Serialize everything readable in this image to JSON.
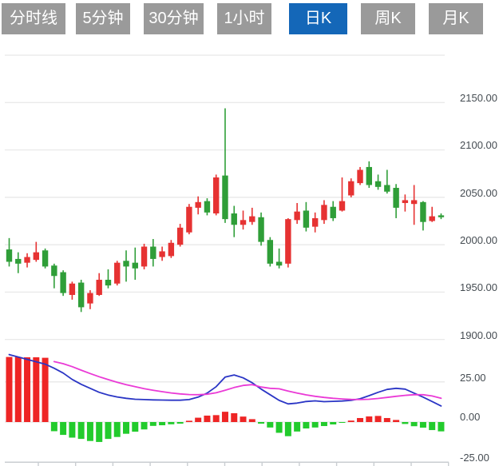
{
  "tabs": {
    "items": [
      {
        "label": "分时线",
        "active": false
      },
      {
        "label": "5分钟",
        "active": false
      },
      {
        "label": "30分钟",
        "active": false
      },
      {
        "label": "1小时",
        "active": false
      },
      {
        "label": "日K",
        "active": true
      },
      {
        "label": "周K",
        "active": false
      },
      {
        "label": "月K",
        "active": false
      }
    ]
  },
  "price_axis": {
    "labels": [
      "2150.00",
      "2100.00",
      "2050.00",
      "2000.00",
      "1950.00",
      "1900.00"
    ]
  },
  "macd_axis": {
    "labels": [
      "25.00",
      "0.00",
      "-25.00"
    ]
  },
  "chart_data": {
    "type": "candlestick",
    "title": "",
    "panels": [
      "price-candles",
      "macd"
    ],
    "price_axis_ticks": [
      2150,
      2100,
      2050,
      2000,
      1950,
      1900
    ],
    "price_grid_levels": [
      2200,
      2150,
      2100,
      2050,
      2000,
      1950,
      1900
    ],
    "price_range": [
      1900,
      2200
    ],
    "macd_axis_ticks": [
      25,
      0,
      -25
    ],
    "macd_range": [
      -25,
      45
    ],
    "grid": true,
    "candles_ohlc": [
      [
        1995,
        2007,
        1977,
        1982
      ],
      [
        1985,
        1992,
        1970,
        1980
      ],
      [
        1981,
        1991,
        1976,
        1987
      ],
      [
        1984,
        2003,
        1982,
        1992
      ],
      [
        1994,
        1996,
        1975,
        1977
      ],
      [
        1978,
        1980,
        1954,
        1967
      ],
      [
        1971,
        1973,
        1946,
        1949
      ],
      [
        1947,
        1961,
        1942,
        1959
      ],
      [
        1960,
        1963,
        1929,
        1934
      ],
      [
        1938,
        1952,
        1932,
        1949
      ],
      [
        1947,
        1970,
        1946,
        1963
      ],
      [
        1963,
        1974,
        1954,
        1957
      ],
      [
        1959,
        1983,
        1957,
        1981
      ],
      [
        1983,
        1994,
        1961,
        1977
      ],
      [
        1981,
        1997,
        1963,
        1975
      ],
      [
        1977,
        2001,
        1974,
        1998
      ],
      [
        1998,
        2006,
        1977,
        1985
      ],
      [
        1987,
        1998,
        1983,
        1993
      ],
      [
        1988,
        2005,
        1986,
        2002
      ],
      [
        2000,
        2022,
        1998,
        2018
      ],
      [
        2013,
        2043,
        2011,
        2040
      ],
      [
        2039,
        2051,
        2032,
        2045
      ],
      [
        2046,
        2049,
        2031,
        2034
      ],
      [
        2033,
        2074,
        2031,
        2071
      ],
      [
        2073,
        2144,
        2023,
        2027
      ],
      [
        2033,
        2041,
        2008,
        2021
      ],
      [
        2021,
        2036,
        2016,
        2026
      ],
      [
        2024,
        2039,
        2021,
        2030
      ],
      [
        2029,
        2034,
        1999,
        2003
      ],
      [
        2005,
        2008,
        1977,
        1980
      ],
      [
        1982,
        1996,
        1975,
        1978
      ],
      [
        1980,
        2028,
        1976,
        2027
      ],
      [
        2026,
        2044,
        2022,
        2035
      ],
      [
        2036,
        2045,
        2014,
        2018
      ],
      [
        2019,
        2034,
        2013,
        2028
      ],
      [
        2026,
        2047,
        2022,
        2042
      ],
      [
        2040,
        2046,
        2025,
        2028
      ],
      [
        2036,
        2071,
        2035,
        2046
      ],
      [
        2052,
        2070,
        2050,
        2067
      ],
      [
        2065,
        2082,
        2063,
        2079
      ],
      [
        2082,
        2088,
        2060,
        2063
      ],
      [
        2067,
        2074,
        2058,
        2061
      ],
      [
        2063,
        2079,
        2054,
        2056
      ],
      [
        2060,
        2064,
        2028,
        2039
      ],
      [
        2044,
        2053,
        2035,
        2047
      ],
      [
        2043,
        2063,
        2021,
        2047
      ],
      [
        2045,
        2046,
        2015,
        2024
      ],
      [
        2025,
        2040,
        2024,
        2030
      ],
      [
        2031,
        2033,
        2027,
        2029
      ]
    ],
    "macd": {
      "histogram": [
        40.5,
        40.5,
        40.3,
        40.3,
        40,
        -5.7,
        -8,
        -9.7,
        -10.5,
        -11.8,
        -12.4,
        -10.5,
        -9.3,
        -7.3,
        -6,
        -4.6,
        -2.4,
        -2,
        -1.4,
        -1,
        0.8,
        2.7,
        4,
        4.3,
        6.4,
        5.5,
        3.4,
        1.8,
        -1,
        -3.4,
        -6.7,
        -8.8,
        -5.9,
        -4,
        -3.4,
        -2.5,
        -1.5,
        -0.3,
        0.9,
        2.5,
        3.5,
        3.8,
        2.5,
        1.3,
        -1.2,
        -2.6,
        -3.5,
        -5,
        -5.8
      ],
      "dif": [
        42,
        40.5,
        39,
        37.5,
        36,
        33.5,
        30.5,
        26.5,
        23.5,
        21,
        18.5,
        16.8,
        15.6,
        14.8,
        14.2,
        14,
        13.8,
        13.7,
        13.6,
        13.6,
        14,
        15.5,
        18,
        22,
        28,
        29.3,
        27.5,
        24.5,
        20.5,
        17,
        13.5,
        11.3,
        11.8,
        12.8,
        13.2,
        12.7,
        12.9,
        13.1,
        13.5,
        14.5,
        16.4,
        18.5,
        20.3,
        21,
        20.5,
        18,
        15.5,
        12.8,
        10
      ],
      "dea": [
        null,
        null,
        null,
        null,
        null,
        37.6,
        36.3,
        34.5,
        32.3,
        30.2,
        28.2,
        26.4,
        24.8,
        23.3,
        22,
        20.8,
        19.8,
        18.9,
        18.1,
        17.5,
        17.1,
        17,
        17.3,
        18.2,
        19.8,
        21.5,
        22.8,
        23.3,
        21.8,
        21,
        20.7,
        19.3,
        18,
        16.9,
        16,
        15.3,
        14.8,
        14.4,
        14.1,
        14,
        14.2,
        14.7,
        15.3,
        16,
        16.6,
        17,
        17,
        16.2,
        14.8
      ]
    },
    "colors": {
      "up_candle": "#e63232",
      "down_candle": "#2f9e38",
      "hist_positive": "#ee2525",
      "hist_negative": "#22cb2c",
      "dif_line": "#2a35c5",
      "dea_line": "#ea3ad6",
      "gridline": "#eaeaea",
      "axis_line": "#c9cdd1",
      "axis_text": "#454c52",
      "tab_active_bg": "#1467b8",
      "tab_inactive_bg": "#9a9a9a"
    },
    "legend": []
  }
}
